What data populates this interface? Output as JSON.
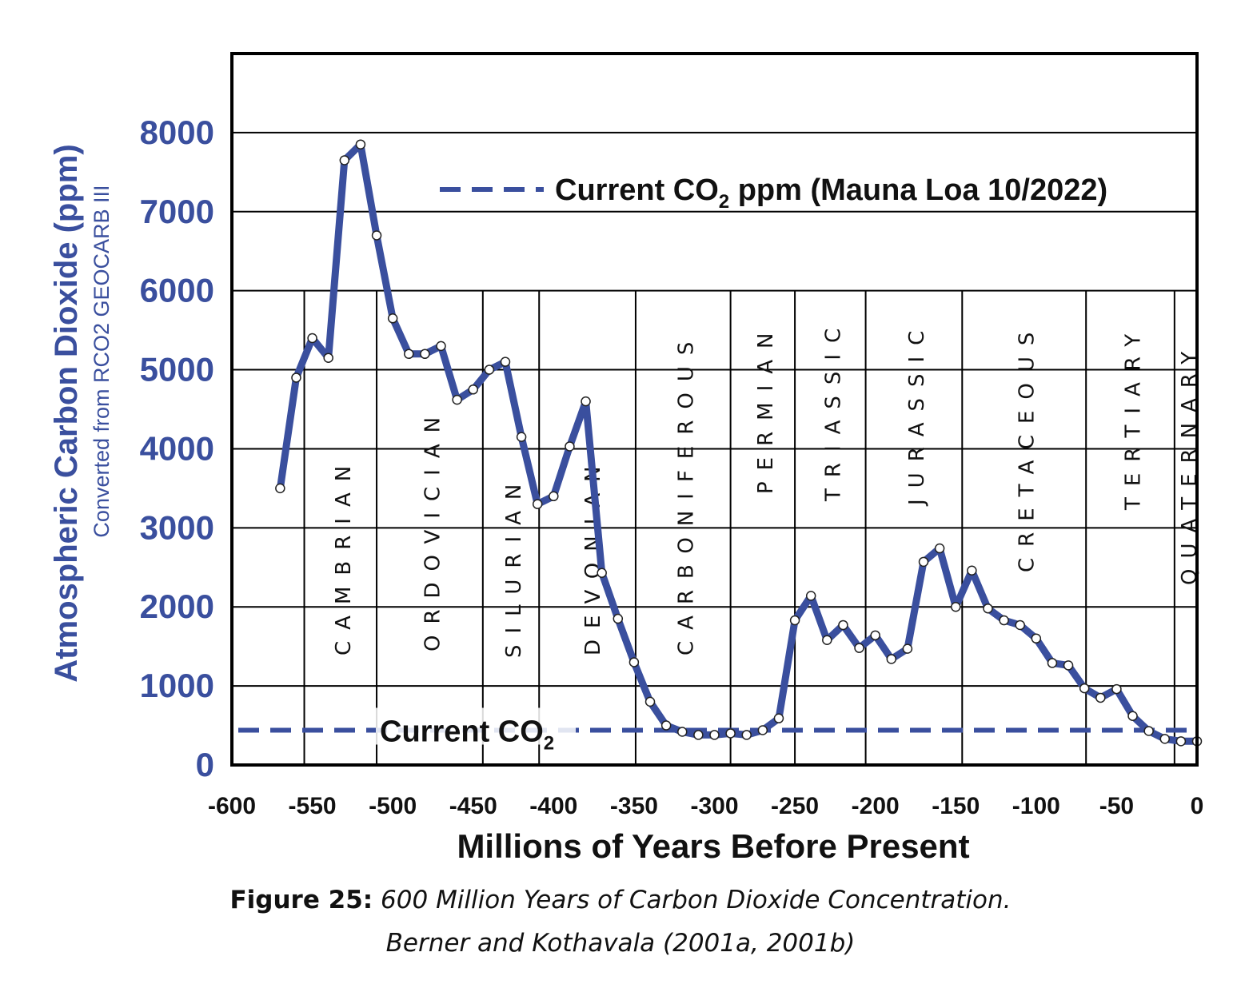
{
  "chart_data": {
    "type": "line",
    "title": "",
    "xlabel": "Millions of Years Before Present",
    "ylabel": "Atmospheric Carbon Dioxide (ppm)",
    "ylabel_sub": "Converted from RCO2 GEOCARB III",
    "xlim": [
      -600,
      0
    ],
    "ylim": [
      0,
      9000
    ],
    "xticks": [
      -600,
      -550,
      -500,
      -450,
      -400,
      -350,
      -300,
      -250,
      -200,
      -150,
      -100,
      -50,
      0
    ],
    "yticks": [
      0,
      1000,
      2000,
      3000,
      4000,
      5000,
      6000,
      7000,
      8000
    ],
    "grid": true,
    "series": [
      {
        "name": "CO2 (GEOCARB III)",
        "color": "#3a4f9e",
        "x": [
          -570,
          -560,
          -550,
          -540,
          -530,
          -520,
          -510,
          -500,
          -490,
          -480,
          -470,
          -460,
          -450,
          -440,
          -430,
          -420,
          -410,
          -400,
          -390,
          -380,
          -370,
          -360,
          -350,
          -340,
          -330,
          -320,
          -310,
          -300,
          -290,
          -280,
          -270,
          -260,
          -250,
          -240,
          -230,
          -220,
          -210,
          -200,
          -190,
          -180,
          -170,
          -160,
          -150,
          -140,
          -130,
          -120,
          -110,
          -100,
          -90,
          -80,
          -70,
          -60,
          -50,
          -40,
          -30,
          -20,
          -10,
          0
        ],
        "y": [
          3500,
          4900,
          5400,
          5150,
          7650,
          7850,
          6700,
          5650,
          5200,
          5200,
          5300,
          4620,
          4750,
          5000,
          5100,
          4150,
          3300,
          3400,
          4030,
          4600,
          2430,
          1850,
          1300,
          800,
          500,
          420,
          380,
          380,
          400,
          380,
          440,
          590,
          1830,
          2140,
          1580,
          1770,
          1480,
          1640,
          1340,
          1470,
          2570,
          2740,
          2000,
          2460,
          1980,
          1830,
          1770,
          1600,
          1290,
          1260,
          970,
          850,
          960,
          620,
          430,
          330,
          300,
          300
        ]
      }
    ],
    "reference_line": {
      "name": "Current CO2",
      "value": 440,
      "style": "dashed",
      "color": "#3a4f9e",
      "label_prefix": "Current CO",
      "label_sub": "2"
    },
    "legend": {
      "position": "top-right",
      "label_prefix": "Current CO",
      "label_sub": "2",
      "label_suffix": " ppm (Mauna Loa 10/2022)"
    },
    "periods": [
      {
        "name": "CAMBRIAN",
        "start": -541,
        "end": -485
      },
      {
        "name": "ORDOVICIAN",
        "start": -485,
        "end": -444
      },
      {
        "name": "SILURIAN",
        "start": -444,
        "end": -419
      },
      {
        "name": "DEVONIAN",
        "start": -419,
        "end": -359
      },
      {
        "name": "CARBONIFEROUS",
        "start": -359,
        "end": -299
      },
      {
        "name": "PERMIAN",
        "start": -299,
        "end": -252
      },
      {
        "name": "TRIASSIC",
        "start": -252,
        "end": -201
      },
      {
        "name": "JURASSIC",
        "start": -201,
        "end": -145
      },
      {
        "name": "CRETACEOUS",
        "start": -145,
        "end": -66
      },
      {
        "name": "TERTIARY",
        "start": -66,
        "end": -2.6
      },
      {
        "name": "QUATERNARY",
        "start": -2.6,
        "end": 0
      }
    ],
    "period_boundaries": [
      -555,
      -510,
      -444,
      -409,
      -349,
      -290,
      -250,
      -206,
      -146,
      -69,
      -14
    ]
  },
  "caption": {
    "label": "Figure 25:",
    "title": " 600 Million Years of Carbon Dioxide Concentration.",
    "source": "Berner and Kothavala (2001a, 2001b)"
  }
}
